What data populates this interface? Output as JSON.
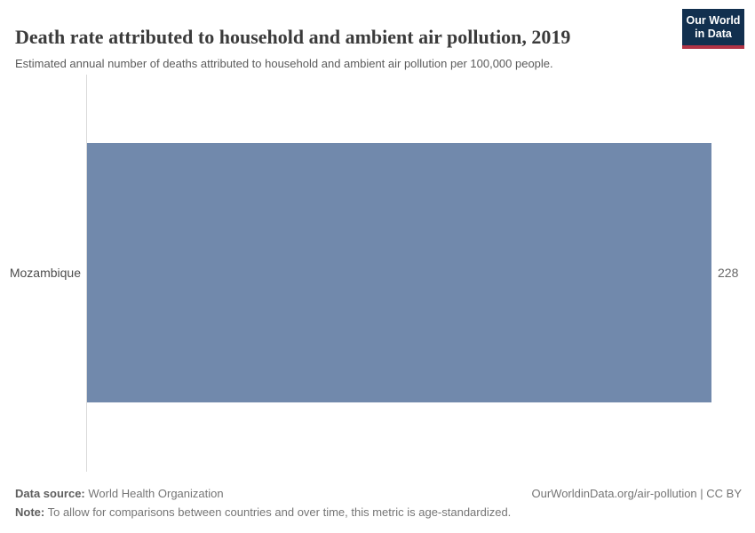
{
  "header": {
    "title": "Death rate attributed to household and ambient air pollution, 2019",
    "subtitle": "Estimated annual number of deaths attributed to household and ambient air pollution per 100,000 people.",
    "logo": {
      "line1": "Our World",
      "line2": "in Data"
    }
  },
  "chart_data": {
    "type": "bar",
    "orientation": "horizontal",
    "title": "Death rate attributed to household and ambient air pollution, 2019",
    "categories": [
      "Mozambique"
    ],
    "values": [
      228
    ],
    "value_labels": [
      "228"
    ],
    "xlim": [
      0,
      228
    ],
    "xlabel": "",
    "ylabel": "",
    "grid": false,
    "legend": "none"
  },
  "footer": {
    "source_label": "Data source:",
    "source": "World Health Organization",
    "note_label": "Note:",
    "note": "To allow for comparisons between countries and over time, this metric is age-standardized.",
    "attribution": "OurWorldinData.org/air-pollution | CC BY"
  },
  "colors": {
    "bar": "#7189ac",
    "axis_line": "#dadada",
    "logo_bg": "#12304f",
    "logo_accent": "#b13345"
  }
}
